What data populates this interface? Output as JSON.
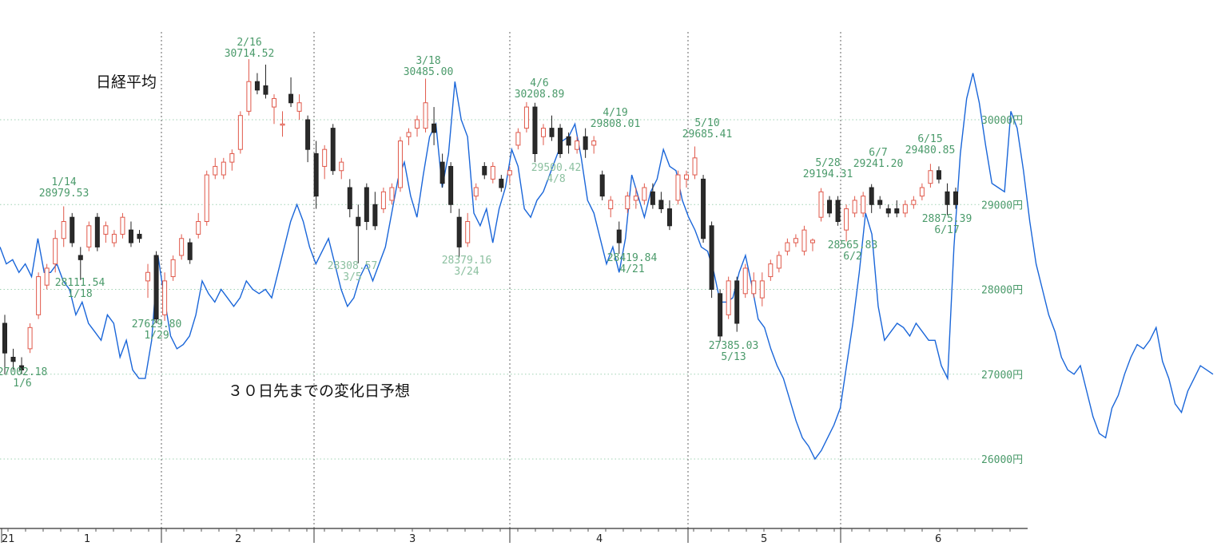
{
  "chart_data": {
    "type": "candlestick-with-line",
    "title": "日経平均",
    "forecast_label": "３０日先までの変化日予想",
    "y_ticks": [
      {
        "value": 26000,
        "label": "26000円"
      },
      {
        "value": 27000,
        "label": "27000円"
      },
      {
        "value": 28000,
        "label": "28000円"
      },
      {
        "value": 29000,
        "label": "29000円"
      },
      {
        "value": 30000,
        "label": "30000円"
      }
    ],
    "x_ticks": [
      "21",
      "1",
      "2",
      "3",
      "4",
      "5",
      "6"
    ],
    "ylim": [
      25200,
      31600
    ],
    "annotations": [
      {
        "date": "1/6",
        "value": "27002.18",
        "pos": "below"
      },
      {
        "date": "1/14",
        "value": "28979.53",
        "pos": "above"
      },
      {
        "date": "1/18",
        "value": "28111.54",
        "pos": "below"
      },
      {
        "date": "1/29",
        "value": "27629.80",
        "pos": "below"
      },
      {
        "date": "2/16",
        "value": "30714.52",
        "pos": "above"
      },
      {
        "date": "3/5",
        "value": "28308.57",
        "pos": "below"
      },
      {
        "date": "3/18",
        "value": "30485.00",
        "pos": "above"
      },
      {
        "date": "3/24",
        "value": "28379.16",
        "pos": "below"
      },
      {
        "date": "4/6",
        "value": "30208.89",
        "pos": "above"
      },
      {
        "date": "4/8",
        "value": "29500.42",
        "pos": "below"
      },
      {
        "date": "4/19",
        "value": "29808.01",
        "pos": "above"
      },
      {
        "date": "4/21",
        "value": "28419.84",
        "pos": "below"
      },
      {
        "date": "5/10",
        "value": "29685.41",
        "pos": "above"
      },
      {
        "date": "5/13",
        "value": "27385.03",
        "pos": "below"
      },
      {
        "date": "5/28",
        "value": "29194.31",
        "pos": "above"
      },
      {
        "date": "6/2",
        "value": "28565.83",
        "pos": "below"
      },
      {
        "date": "6/7",
        "value": "29241.20",
        "pos": "above"
      },
      {
        "date": "6/15",
        "value": "29480.85",
        "pos": "above"
      },
      {
        "date": "6/17",
        "value": "28875.39",
        "pos": "below"
      }
    ],
    "candles": [
      {
        "o": 27600,
        "h": 27700,
        "l": 27000,
        "c": 27250
      },
      {
        "o": 27200,
        "h": 27300,
        "l": 27050,
        "c": 27150
      },
      {
        "o": 27100,
        "h": 27200,
        "l": 27002,
        "c": 27050
      },
      {
        "o": 27300,
        "h": 27600,
        "l": 27250,
        "c": 27550
      },
      {
        "o": 27700,
        "h": 28200,
        "l": 27650,
        "c": 28150
      },
      {
        "o": 28050,
        "h": 28300,
        "l": 28000,
        "c": 28250
      },
      {
        "o": 28300,
        "h": 28700,
        "l": 28200,
        "c": 28600
      },
      {
        "o": 28600,
        "h": 28979,
        "l": 28500,
        "c": 28800
      },
      {
        "o": 28850,
        "h": 28900,
        "l": 28500,
        "c": 28550
      },
      {
        "o": 28400,
        "h": 28500,
        "l": 28111,
        "c": 28350
      },
      {
        "o": 28500,
        "h": 28800,
        "l": 28450,
        "c": 28750
      },
      {
        "o": 28850,
        "h": 28900,
        "l": 28450,
        "c": 28500
      },
      {
        "o": 28650,
        "h": 28800,
        "l": 28550,
        "c": 28750
      },
      {
        "o": 28550,
        "h": 28700,
        "l": 28500,
        "c": 28650
      },
      {
        "o": 28650,
        "h": 28900,
        "l": 28600,
        "c": 28850
      },
      {
        "o": 28700,
        "h": 28800,
        "l": 28500,
        "c": 28550
      },
      {
        "o": 28650,
        "h": 28700,
        "l": 28550,
        "c": 28600
      },
      {
        "o": 28100,
        "h": 28300,
        "l": 27900,
        "c": 28200
      },
      {
        "o": 28400,
        "h": 28450,
        "l": 27600,
        "c": 27650
      },
      {
        "o": 27700,
        "h": 28200,
        "l": 27629,
        "c": 28100
      },
      {
        "o": 28150,
        "h": 28400,
        "l": 28100,
        "c": 28350
      },
      {
        "o": 28400,
        "h": 28650,
        "l": 28350,
        "c": 28600
      },
      {
        "o": 28550,
        "h": 28600,
        "l": 28300,
        "c": 28350
      },
      {
        "o": 28650,
        "h": 28900,
        "l": 28600,
        "c": 28800
      },
      {
        "o": 28800,
        "h": 29400,
        "l": 28750,
        "c": 29350
      },
      {
        "o": 29350,
        "h": 29550,
        "l": 29300,
        "c": 29450
      },
      {
        "o": 29350,
        "h": 29550,
        "l": 29300,
        "c": 29500
      },
      {
        "o": 29500,
        "h": 29650,
        "l": 29400,
        "c": 29600
      },
      {
        "o": 29650,
        "h": 30100,
        "l": 29600,
        "c": 30050
      },
      {
        "o": 30100,
        "h": 30714,
        "l": 30050,
        "c": 30450
      },
      {
        "o": 30450,
        "h": 30550,
        "l": 30300,
        "c": 30350
      },
      {
        "o": 30400,
        "h": 30650,
        "l": 30250,
        "c": 30300
      },
      {
        "o": 30150,
        "h": 30300,
        "l": 29950,
        "c": 30250
      },
      {
        "o": 29950,
        "h": 30100,
        "l": 29800,
        "c": 29950
      },
      {
        "o": 30300,
        "h": 30500,
        "l": 30150,
        "c": 30200
      },
      {
        "o": 30100,
        "h": 30300,
        "l": 30000,
        "c": 30200
      },
      {
        "o": 30000,
        "h": 30050,
        "l": 29500,
        "c": 29650
      },
      {
        "o": 29600,
        "h": 29750,
        "l": 28950,
        "c": 29100
      },
      {
        "o": 29450,
        "h": 29700,
        "l": 29300,
        "c": 29650
      },
      {
        "o": 29900,
        "h": 29950,
        "l": 29350,
        "c": 29400
      },
      {
        "o": 29400,
        "h": 29550,
        "l": 29300,
        "c": 29500
      },
      {
        "o": 29200,
        "h": 29300,
        "l": 28850,
        "c": 28950
      },
      {
        "o": 28850,
        "h": 29000,
        "l": 28308,
        "c": 28750
      },
      {
        "o": 29200,
        "h": 29250,
        "l": 28700,
        "c": 28800
      },
      {
        "o": 29000,
        "h": 29150,
        "l": 28700,
        "c": 28750
      },
      {
        "o": 28950,
        "h": 29200,
        "l": 28900,
        "c": 29150
      },
      {
        "o": 29050,
        "h": 29250,
        "l": 29000,
        "c": 29200
      },
      {
        "o": 29200,
        "h": 29800,
        "l": 29150,
        "c": 29750
      },
      {
        "o": 29800,
        "h": 29900,
        "l": 29700,
        "c": 29850
      },
      {
        "o": 29900,
        "h": 30050,
        "l": 29800,
        "c": 30000
      },
      {
        "o": 29900,
        "h": 30485,
        "l": 29850,
        "c": 30200
      },
      {
        "o": 29950,
        "h": 30150,
        "l": 29700,
        "c": 29850
      },
      {
        "o": 29500,
        "h": 29600,
        "l": 29200,
        "c": 29250
      },
      {
        "o": 29450,
        "h": 29500,
        "l": 28900,
        "c": 29000
      },
      {
        "o": 28850,
        "h": 28950,
        "l": 28379,
        "c": 28500
      },
      {
        "o": 28550,
        "h": 28900,
        "l": 28500,
        "c": 28800
      },
      {
        "o": 29100,
        "h": 29250,
        "l": 29050,
        "c": 29200
      },
      {
        "o": 29450,
        "h": 29500,
        "l": 29300,
        "c": 29350
      },
      {
        "o": 29300,
        "h": 29500,
        "l": 29250,
        "c": 29450
      },
      {
        "o": 29300,
        "h": 29350,
        "l": 29150,
        "c": 29200
      },
      {
        "o": 29350,
        "h": 29450,
        "l": 29250,
        "c": 29400
      },
      {
        "o": 29700,
        "h": 29900,
        "l": 29650,
        "c": 29850
      },
      {
        "o": 29900,
        "h": 30208,
        "l": 29850,
        "c": 30150
      },
      {
        "o": 30150,
        "h": 30200,
        "l": 29500,
        "c": 29600
      },
      {
        "o": 29800,
        "h": 29950,
        "l": 29700,
        "c": 29900
      },
      {
        "o": 29900,
        "h": 30050,
        "l": 29750,
        "c": 29800
      },
      {
        "o": 29900,
        "h": 29950,
        "l": 29550,
        "c": 29600
      },
      {
        "o": 29800,
        "h": 29850,
        "l": 29600,
        "c": 29700
      },
      {
        "o": 29650,
        "h": 29800,
        "l": 29600,
        "c": 29750
      },
      {
        "o": 29800,
        "h": 29900,
        "l": 29550,
        "c": 29650
      },
      {
        "o": 29700,
        "h": 29808,
        "l": 29600,
        "c": 29750
      },
      {
        "o": 29350,
        "h": 29400,
        "l": 29050,
        "c": 29100
      },
      {
        "o": 28950,
        "h": 29100,
        "l": 28850,
        "c": 29050
      },
      {
        "o": 28700,
        "h": 28800,
        "l": 28419,
        "c": 28550
      },
      {
        "o": 28950,
        "h": 29150,
        "l": 28900,
        "c": 29100
      },
      {
        "o": 29050,
        "h": 29200,
        "l": 28950,
        "c": 29100
      },
      {
        "o": 29050,
        "h": 29250,
        "l": 29000,
        "c": 29200
      },
      {
        "o": 29150,
        "h": 29250,
        "l": 28950,
        "c": 29000
      },
      {
        "o": 29050,
        "h": 29150,
        "l": 28900,
        "c": 28950
      },
      {
        "o": 28950,
        "h": 29050,
        "l": 28700,
        "c": 28750
      },
      {
        "o": 29050,
        "h": 29400,
        "l": 29000,
        "c": 29350
      },
      {
        "o": 29300,
        "h": 29400,
        "l": 29200,
        "c": 29350
      },
      {
        "o": 29350,
        "h": 29685,
        "l": 29300,
        "c": 29550
      },
      {
        "o": 29300,
        "h": 29350,
        "l": 28550,
        "c": 28600
      },
      {
        "o": 28750,
        "h": 28800,
        "l": 27900,
        "c": 28000
      },
      {
        "o": 27950,
        "h": 28000,
        "l": 27385,
        "c": 27450
      },
      {
        "o": 27700,
        "h": 28150,
        "l": 27650,
        "c": 28100
      },
      {
        "o": 28100,
        "h": 28150,
        "l": 27500,
        "c": 27600
      },
      {
        "o": 27950,
        "h": 28300,
        "l": 27900,
        "c": 28250
      },
      {
        "o": 27950,
        "h": 28200,
        "l": 27900,
        "c": 28100
      },
      {
        "o": 27900,
        "h": 28200,
        "l": 27800,
        "c": 28100
      },
      {
        "o": 28150,
        "h": 28350,
        "l": 28100,
        "c": 28300
      },
      {
        "o": 28250,
        "h": 28450,
        "l": 28200,
        "c": 28400
      },
      {
        "o": 28450,
        "h": 28600,
        "l": 28400,
        "c": 28550
      },
      {
        "o": 28550,
        "h": 28650,
        "l": 28500,
        "c": 28600
      },
      {
        "o": 28450,
        "h": 28750,
        "l": 28400,
        "c": 28700
      },
      {
        "o": 28550,
        "h": 28600,
        "l": 28450,
        "c": 28580
      },
      {
        "o": 28850,
        "h": 29194,
        "l": 28800,
        "c": 29150
      },
      {
        "o": 29050,
        "h": 29100,
        "l": 28850,
        "c": 28900
      },
      {
        "o": 29050,
        "h": 29100,
        "l": 28750,
        "c": 28800
      },
      {
        "o": 28700,
        "h": 29000,
        "l": 28565,
        "c": 28950
      },
      {
        "o": 28900,
        "h": 29100,
        "l": 28850,
        "c": 29050
      },
      {
        "o": 28900,
        "h": 29150,
        "l": 28850,
        "c": 29100
      },
      {
        "o": 29200,
        "h": 29241,
        "l": 28900,
        "c": 29000
      },
      {
        "o": 29050,
        "h": 29100,
        "l": 28950,
        "c": 29000
      },
      {
        "o": 28950,
        "h": 29000,
        "l": 28850,
        "c": 28900
      },
      {
        "o": 28950,
        "h": 29050,
        "l": 28850,
        "c": 28900
      },
      {
        "o": 28900,
        "h": 29050,
        "l": 28850,
        "c": 29000
      },
      {
        "o": 29000,
        "h": 29100,
        "l": 28950,
        "c": 29050
      },
      {
        "o": 29100,
        "h": 29250,
        "l": 29050,
        "c": 29200
      },
      {
        "o": 29250,
        "h": 29480,
        "l": 29200,
        "c": 29400
      },
      {
        "o": 29400,
        "h": 29450,
        "l": 29250,
        "c": 29300
      },
      {
        "o": 29150,
        "h": 29250,
        "l": 28875,
        "c": 29000
      },
      {
        "o": 29150,
        "h": 29200,
        "l": 28950,
        "c": 29000
      }
    ],
    "forecast_line": [
      28500,
      28300,
      28350,
      28200,
      28300,
      28150,
      28600,
      28200,
      28200,
      28300,
      28100,
      28000,
      27700,
      27850,
      27600,
      27500,
      27400,
      27700,
      27600,
      27200,
      27400,
      27050,
      26950,
      26950,
      27400,
      28400,
      27900,
      27450,
      27300,
      27350,
      27450,
      27700,
      28100,
      27950,
      27850,
      28000,
      27900,
      27800,
      27900,
      28100,
      28000,
      27950,
      28000,
      27900,
      28200,
      28500,
      28800,
      29000,
      28800,
      28500,
      28300,
      28450,
      28600,
      28300,
      28000,
      27800,
      27900,
      28150,
      28300,
      28100,
      28300,
      28500,
      28900,
      29300,
      29500,
      29100,
      28850,
      29350,
      29800,
      29950,
      29200,
      29600,
      30450,
      30000,
      29800,
      28900,
      28750,
      28950,
      28550,
      28950,
      29200,
      29650,
      29450,
      28950,
      28850,
      29050,
      29150,
      29350,
      29550,
      29750,
      29800,
      29950,
      29550,
      29050,
      28900,
      28600,
      28300,
      28500,
      28200,
      28600,
      29350,
      29100,
      28850,
      29150,
      29300,
      29650,
      29450,
      29400,
      29050,
      28850,
      28700,
      28500,
      28450,
      28200,
      27850,
      27850,
      27900,
      28200,
      28400,
      28050,
      27650,
      27550,
      27300,
      27100,
      26950,
      26700,
      26450,
      26250,
      26150,
      26000,
      26100,
      26250,
      26400,
      26600,
      27100,
      27600,
      28200,
      28900,
      28650,
      27800,
      27400,
      27500,
      27600,
      27550,
      27450,
      27600,
      27500,
      27400,
      27400,
      27100,
      26950,
      28500,
      29600,
      30250,
      30550,
      30200,
      29700,
      29250,
      29200,
      29150,
      30100,
      29900,
      29400,
      28800,
      28300,
      28000,
      27700,
      27500,
      27200,
      27050,
      27000,
      27100,
      26800,
      26500,
      26300,
      26250,
      26600,
      26750,
      27000,
      27200,
      27350,
      27300,
      27400,
      27550,
      27150,
      26950,
      26650,
      26550,
      26800,
      26950,
      27100,
      27050,
      27000
    ]
  }
}
